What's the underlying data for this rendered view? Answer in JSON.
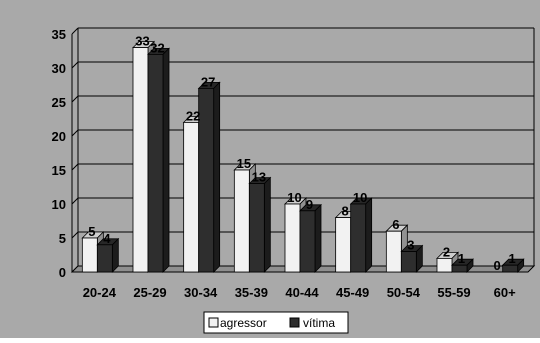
{
  "chart_data": {
    "type": "bar",
    "categories": [
      "20-24",
      "25-29",
      "30-34",
      "35-39",
      "40-44",
      "45-49",
      "50-54",
      "55-59",
      "60+"
    ],
    "series": [
      {
        "name": "agressor",
        "values": [
          5,
          33,
          22,
          15,
          10,
          8,
          6,
          2,
          0
        ]
      },
      {
        "name": "vítima",
        "values": [
          4,
          32,
          27,
          13,
          9,
          10,
          3,
          1,
          1
        ]
      }
    ],
    "title": "",
    "xlabel": "",
    "ylabel": "",
    "ylim": [
      0,
      35
    ],
    "yticks": [
      0,
      5,
      10,
      15,
      20,
      25,
      30,
      35
    ],
    "grid": true,
    "legend_position": "bottom",
    "three_d": true
  },
  "colors": {
    "background": "#a9a9a9",
    "plot_area": "#a9a9a9",
    "gridline": "#000000",
    "agressor": "#f2f2f2",
    "vitima": "#2e2e2e",
    "text": "#000000",
    "legend_bg": "#ffffff"
  }
}
